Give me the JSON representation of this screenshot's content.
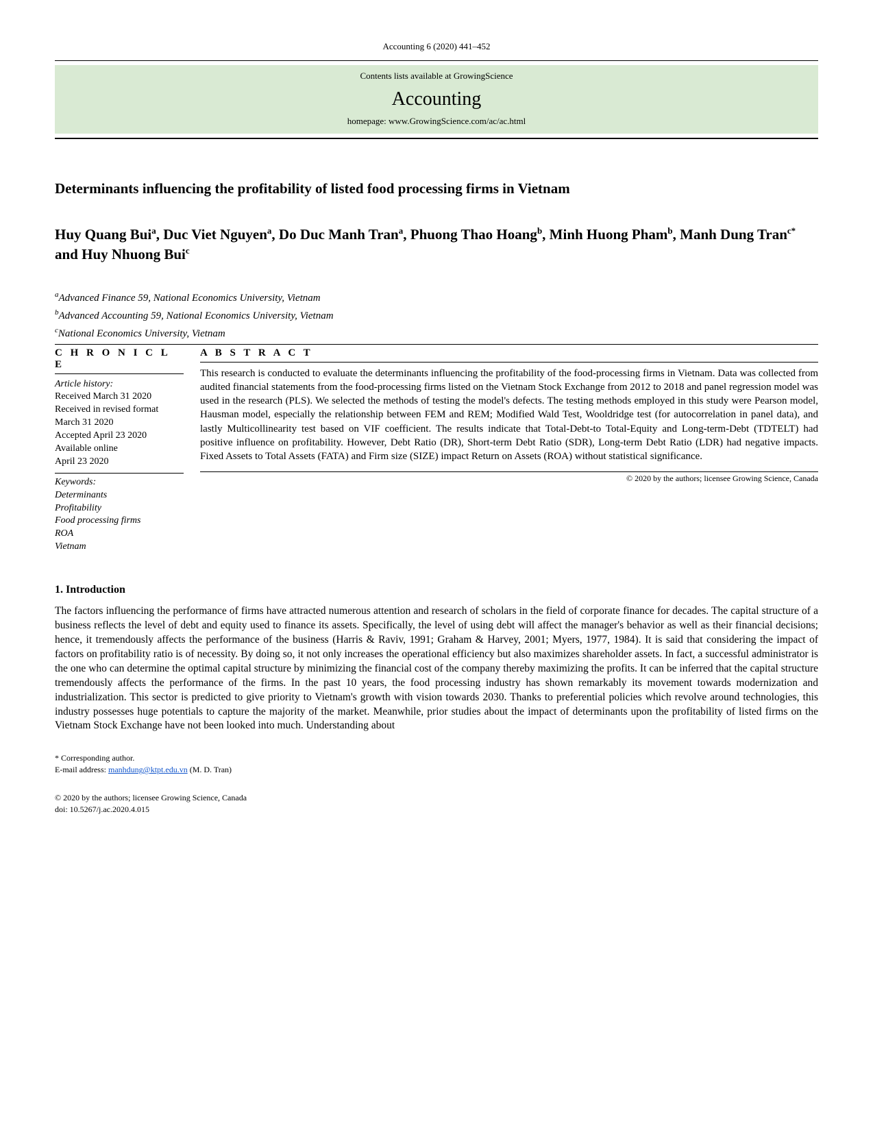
{
  "header": {
    "journal_ref": "Accounting 6 (2020) 441–452",
    "contents_line": "Contents lists available at GrowingScience",
    "journal_name": "Accounting",
    "homepage": "homepage: www.GrowingScience.com/ac/ac.html",
    "box_bg": "#d9ead3"
  },
  "title": "Determinants influencing the profitability of listed food processing firms in Vietnam",
  "authors_html": "Huy Quang Bui<sup>a</sup>, Duc Viet Nguyen<sup>a</sup>, Do Duc Manh Tran<sup>a</sup>, Phuong Thao Hoang<sup>b</sup>, Minh Huong Pham<sup>b</sup>, Manh Dung Tran<sup>c*</sup> and Huy Nhuong Bui<sup>c</sup>",
  "affiliations": [
    {
      "sup": "a",
      "text": "Advanced Finance 59, National Economics University, Vietnam"
    },
    {
      "sup": "b",
      "text": "Advanced Accounting 59, National Economics University, Vietnam"
    },
    {
      "sup": "c",
      "text": "National Economics University, Vietnam"
    }
  ],
  "chronicle": {
    "head": "C H R O N I C L E",
    "history_label": "Article history:",
    "lines": [
      "Received March 31 2020",
      "Received in revised format March 31 2020",
      "Accepted April 23 2020",
      "Available online",
      "April 23 2020"
    ],
    "keywords_label": "Keywords:",
    "keywords": [
      "Determinants",
      "Profitability",
      "Food processing firms",
      "ROA",
      "Vietnam"
    ]
  },
  "abstract": {
    "head": "A B S T R A C T",
    "text": "This research is conducted to evaluate the determinants influencing the profitability of the food-processing firms in Vietnam. Data was collected from audited financial statements from the food-processing firms listed on the Vietnam Stock Exchange from 2012 to 2018 and panel regression model was used in the research (PLS). We selected the methods of testing the model's defects. The testing methods employed in this study were Pearson model, Hausman model, especially the relationship between FEM and REM; Modified Wald Test, Wooldridge test (for autocorrelation in panel data), and lastly Multicollinearity test based on VIF coefficient. The results indicate that Total-Debt-to Total-Equity and Long-term-Debt (TDTELT) had positive influence on profitability. However, Debt Ratio (DR), Short-term Debt Ratio (SDR), Long-term Debt Ratio (LDR) had negative impacts. Fixed Assets to Total Assets (FATA) and Firm size (SIZE) impact Return on Assets (ROA) without statistical significance."
  },
  "copyright_box": "© 2020 by the authors; licensee Growing Science, Canada",
  "introduction": {
    "head": "1. Introduction",
    "body": "The factors influencing the performance of firms have attracted numerous attention and research of scholars in the field of corporate finance for decades. The capital structure of a business reflects the level of debt and equity used to finance its assets. Specifically, the level of using debt will affect the manager's behavior as well as their financial decisions; hence, it tremendously affects the performance of the business (Harris & Raviv, 1991; Graham & Harvey, 2001; Myers, 1977, 1984). It is said that considering the impact of factors on profitability ratio is of necessity. By doing so, it not only increases the operational efficiency but also maximizes shareholder assets. In fact, a successful administrator is the one who can determine the optimal capital structure by minimizing the financial cost of the company thereby maximizing the profits. It can be inferred that the capital structure tremendously affects the performance of the firms. In the past 10 years, the food processing industry has shown remarkably its movement towards modernization and industrialization. This sector is predicted to give priority to Vietnam's growth with vision towards 2030. Thanks to preferential policies which revolve around technologies, this industry possesses huge potentials to capture the majority of the market. Meanwhile, prior studies about the impact of determinants upon the profitability of listed firms on the Vietnam Stock Exchange have not been looked into much. Understanding about"
  },
  "footer": {
    "corresponding": "* Corresponding author.",
    "email_label": "E-mail address:  ",
    "email": "manhdung@ktpt.edu.vn",
    "email_after": "  (M. D. Tran)",
    "copy1": "© 2020 by the authors; licensee Growing Science, Canada",
    "doi": "doi: 10.5267/j.ac.2020.4.015"
  }
}
